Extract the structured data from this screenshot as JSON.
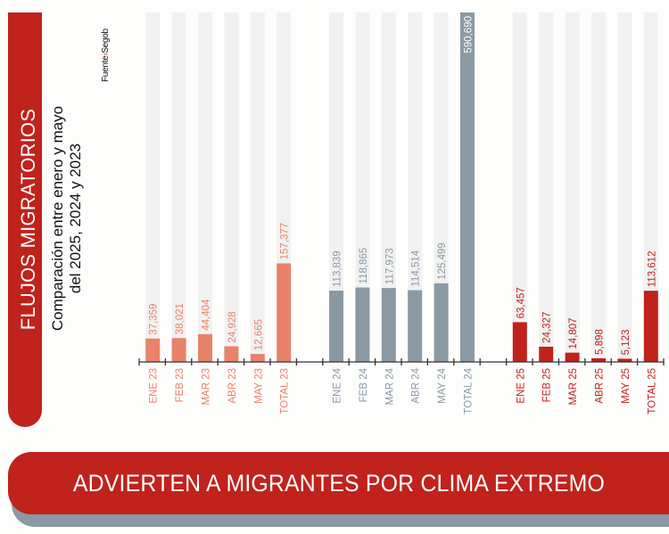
{
  "header": {
    "title": "FLUJOS MIGRATORIOS",
    "subtitle_line1": "Comparación entre enero y mayo",
    "subtitle_line2": "del 2025, 2024 y 2023",
    "source_label": "Fuente",
    "source_separator": "›",
    "source_value": "Segob"
  },
  "banner": {
    "text": "ADVIERTEN A MIGRANTES POR CLIMA EXTREMO"
  },
  "colors": {
    "brand_red": "#c0221c",
    "series_2023": "#e8836a",
    "series_2024": "#8a9aa4",
    "series_2025": "#c0221c",
    "track": "#f1f1f1",
    "axis": "#333333"
  },
  "chart_data": {
    "type": "bar",
    "title": "FLUJOS MIGRATORIOS",
    "subtitle": "Comparación entre enero y mayo del 2025, 2024 y 2023",
    "xlabel": "",
    "ylabel": "",
    "ylim": [
      0,
      560000
    ],
    "grid": false,
    "legend": "none",
    "note": "TOTAL 24 bar exceeds the plotting area and is clipped at the top",
    "groups": [
      {
        "name": "2023",
        "color": "#e8836a",
        "categories": [
          "ENE 23",
          "FEB 23",
          "MAR 23",
          "ABR 23",
          "MAY 23",
          "TOTAL 23"
        ],
        "values": [
          37359,
          38021,
          44404,
          24928,
          12665,
          157377
        ],
        "labels": [
          "37,359",
          "38,021",
          "44,404",
          "24,928",
          "12,665",
          "157,377"
        ]
      },
      {
        "name": "2024",
        "color": "#8a9aa4",
        "categories": [
          "ENE 24",
          "FEB 24",
          "MAR 24",
          "ABR 24",
          "MAY 24",
          "TOTAL 24"
        ],
        "values": [
          113839,
          118865,
          117973,
          114514,
          125499,
          590690
        ],
        "labels": [
          "113,839",
          "118,865",
          "117,973",
          "114,514",
          "125,499",
          "590,690"
        ]
      },
      {
        "name": "2025",
        "color": "#c0221c",
        "categories": [
          "ENE 25",
          "FEB 25",
          "MAR 25",
          "ABR 25",
          "MAY 25",
          "TOTAL 25"
        ],
        "values": [
          63457,
          24327,
          14807,
          5898,
          5123,
          113612
        ],
        "labels": [
          "63,457",
          "24,327",
          "14,807",
          "5,898",
          "5,123",
          "113,612"
        ]
      }
    ]
  }
}
